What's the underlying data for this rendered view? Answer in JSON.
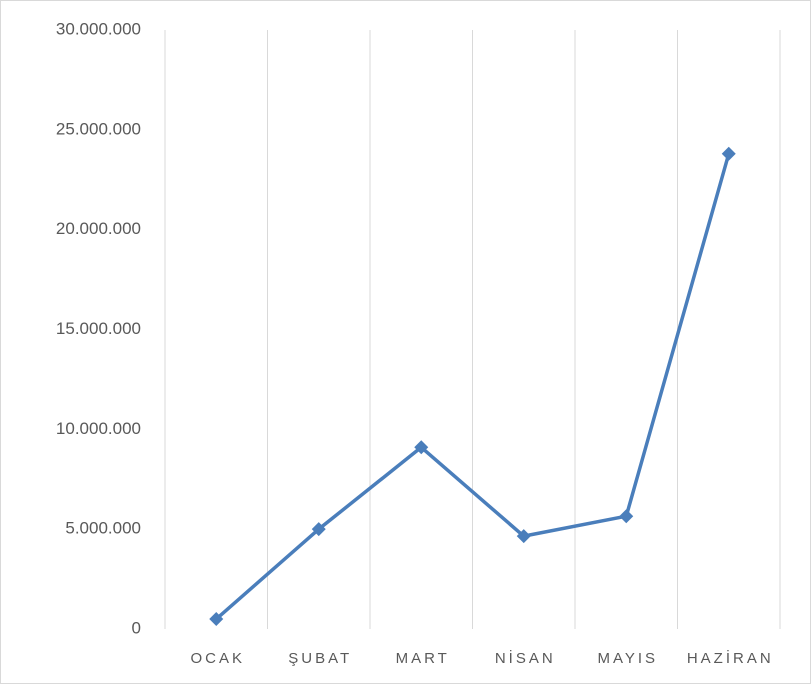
{
  "chart_data": {
    "type": "line",
    "categories": [
      "OCAK",
      "ŞUBAT",
      "MART",
      "NİSAN",
      "MAYIS",
      "HAZİRAN"
    ],
    "series": [
      {
        "name": null,
        "color": "#4a7ebb",
        "values": [
          500000,
          5000000,
          9100000,
          4650000,
          5650000,
          23800000
        ]
      }
    ],
    "ylim": [
      0,
      30000000
    ],
    "yticks": [
      0,
      {
        "value": 5000000,
        "label": "5.000.000"
      },
      {
        "value": 10000000,
        "label": "10.000.000"
      },
      {
        "value": 15000000,
        "label": "15.000.000"
      },
      {
        "value": 20000000,
        "label": "20.000.000"
      },
      {
        "value": 25000000,
        "label": "25.000.000"
      },
      {
        "value": 30000000,
        "label": "30.000.000"
      }
    ],
    "grid": true
  }
}
